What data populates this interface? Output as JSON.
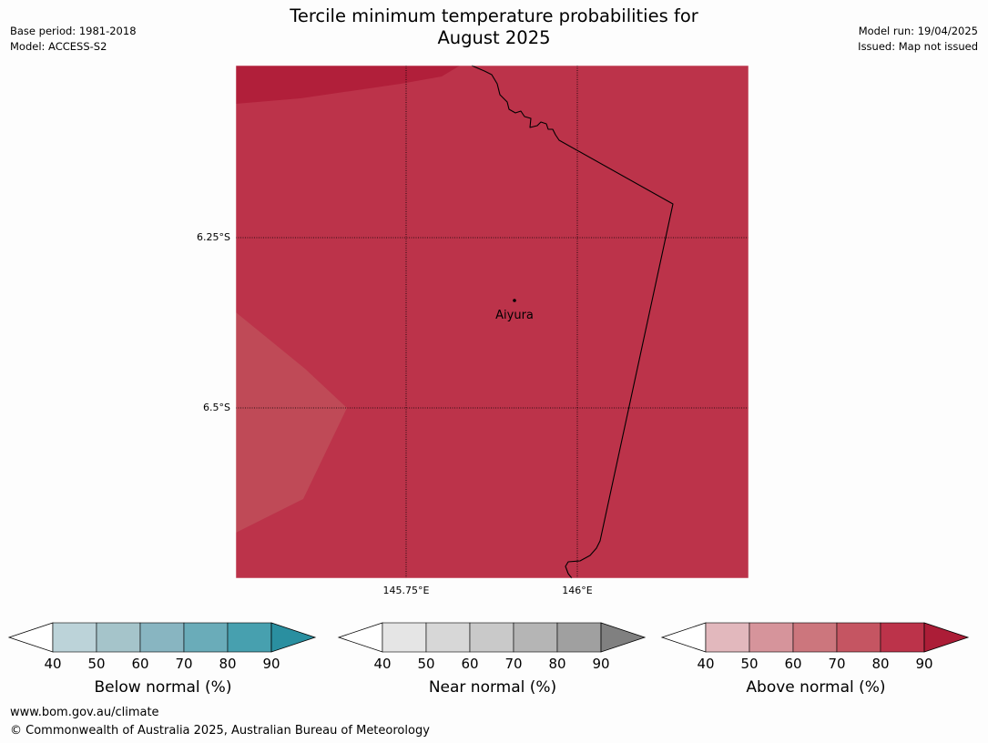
{
  "title_line1": "Tercile minimum temperature probabilities for",
  "title_line2": "August 2025",
  "meta_left": [
    "Base period: 1981-2018",
    "Model: ACCESS-S2"
  ],
  "meta_right": [
    "Model run: 19/04/2025",
    "Issued: Map not issued"
  ],
  "map": {
    "lat_labels": [
      "6.25°S",
      "6.5°S"
    ],
    "lon_labels": [
      "145.75°E",
      "146°E"
    ],
    "place": "Aiyura",
    "fill_color_main": "#bc334a",
    "fill_color_top": "#b11f3a",
    "fill_color_left": "#bf4a57"
  },
  "colorbars": [
    {
      "title": "Below normal (%)",
      "ticks": [
        "40",
        "50",
        "60",
        "70",
        "80",
        "90"
      ],
      "colors": [
        "#ffffff",
        "#bcd3d9",
        "#a5c4ca",
        "#88b5c1",
        "#6aacb9",
        "#47a0af",
        "#2a8fa0"
      ]
    },
    {
      "title": "Near normal (%)",
      "ticks": [
        "40",
        "50",
        "60",
        "70",
        "80",
        "90"
      ],
      "colors": [
        "#ffffff",
        "#e5e5e5",
        "#d7d7d7",
        "#c9c9c9",
        "#b5b5b5",
        "#a0a0a0",
        "#808080"
      ]
    },
    {
      "title": "Above normal (%)",
      "ticks": [
        "40",
        "50",
        "60",
        "70",
        "80",
        "90"
      ],
      "colors": [
        "#ffffff",
        "#e2b8bd",
        "#d6949b",
        "#cc767d",
        "#c55562",
        "#bc334a",
        "#ac1d37"
      ]
    }
  ],
  "footer": [
    "www.bom.gov.au/climate",
    "© Commonwealth of Australia 2025, Australian Bureau of Meteorology"
  ]
}
